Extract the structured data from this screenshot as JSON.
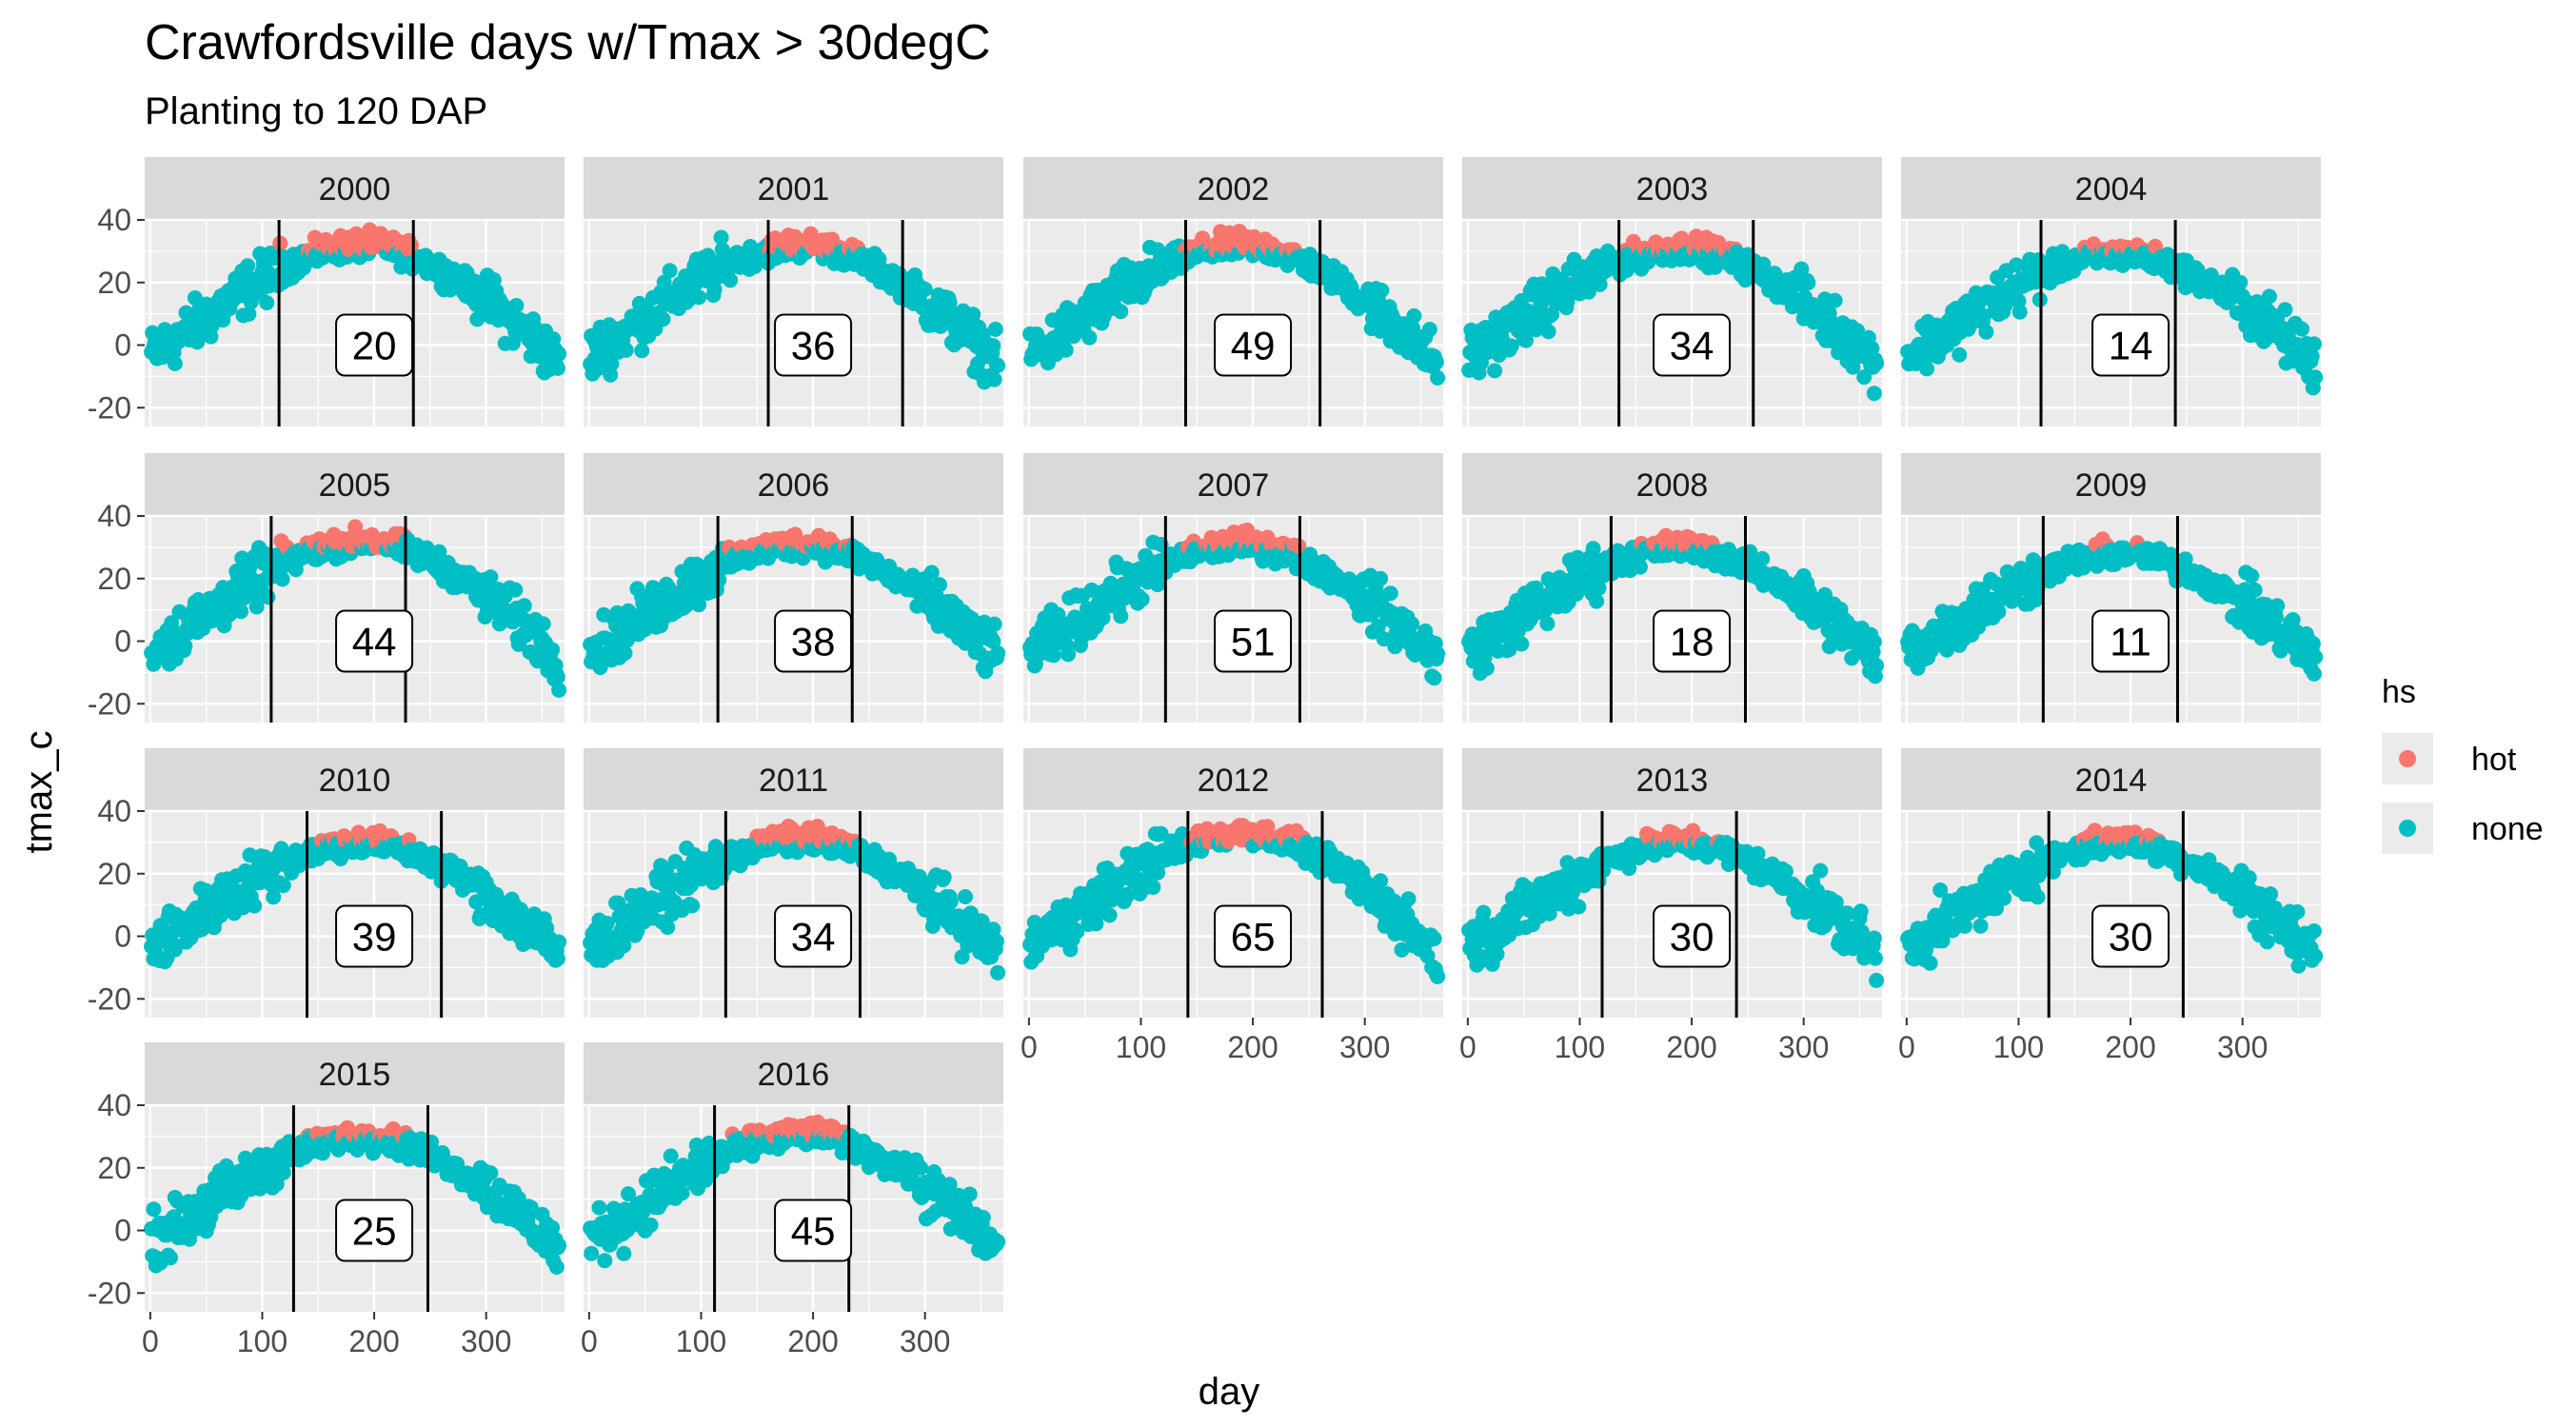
{
  "chart_data": {
    "type": "scatter",
    "title": "Crawfordsville days w/Tmax > 30degC",
    "subtitle": "Planting to 120 DAP",
    "xlabel": "day",
    "ylabel": "tmax_c",
    "xlim": [
      -5,
      370
    ],
    "ylim": [
      -26,
      40
    ],
    "x_ticks": [
      0,
      100,
      200,
      300
    ],
    "y_ticks": [
      -20,
      0,
      20,
      40
    ],
    "grid": true,
    "legend": {
      "title": "hs",
      "position": "right",
      "entries": [
        {
          "label": "hot",
          "color": "#F8766D"
        },
        {
          "label": "none",
          "color": "#00BFC4"
        }
      ]
    },
    "series": [
      {
        "name": "hot",
        "color": "#F8766D"
      },
      {
        "name": "none",
        "color": "#00BFC4"
      }
    ],
    "hot_threshold": 30,
    "panels": [
      {
        "year": "2000",
        "count": 20,
        "planting_day": 115,
        "end_day": 235,
        "peak": 32
      },
      {
        "year": "2001",
        "count": 36,
        "planting_day": 160,
        "end_day": 280,
        "peak": 32
      },
      {
        "year": "2002",
        "count": 49,
        "planting_day": 140,
        "end_day": 260,
        "peak": 32
      },
      {
        "year": "2003",
        "count": 34,
        "planting_day": 135,
        "end_day": 255,
        "peak": 31
      },
      {
        "year": "2004",
        "count": 14,
        "planting_day": 120,
        "end_day": 240,
        "peak": 29
      },
      {
        "year": "2005",
        "count": 44,
        "planting_day": 108,
        "end_day": 228,
        "peak": 32
      },
      {
        "year": "2006",
        "count": 38,
        "planting_day": 115,
        "end_day": 235,
        "peak": 31
      },
      {
        "year": "2007",
        "count": 51,
        "planting_day": 122,
        "end_day": 242,
        "peak": 31
      },
      {
        "year": "2008",
        "count": 18,
        "planting_day": 128,
        "end_day": 248,
        "peak": 30
      },
      {
        "year": "2009",
        "count": 11,
        "planting_day": 122,
        "end_day": 242,
        "peak": 28
      },
      {
        "year": "2010",
        "count": 39,
        "planting_day": 140,
        "end_day": 260,
        "peak": 30
      },
      {
        "year": "2011",
        "count": 34,
        "planting_day": 122,
        "end_day": 242,
        "peak": 31
      },
      {
        "year": "2012",
        "count": 65,
        "planting_day": 142,
        "end_day": 262,
        "peak": 33
      },
      {
        "year": "2013",
        "count": 30,
        "planting_day": 120,
        "end_day": 240,
        "peak": 30
      },
      {
        "year": "2014",
        "count": 30,
        "planting_day": 127,
        "end_day": 247,
        "peak": 30
      },
      {
        "year": "2015",
        "count": 25,
        "planting_day": 128,
        "end_day": 248,
        "peak": 30
      },
      {
        "year": "2016",
        "count": 45,
        "planting_day": 112,
        "end_day": 232,
        "peak": 31
      }
    ]
  }
}
